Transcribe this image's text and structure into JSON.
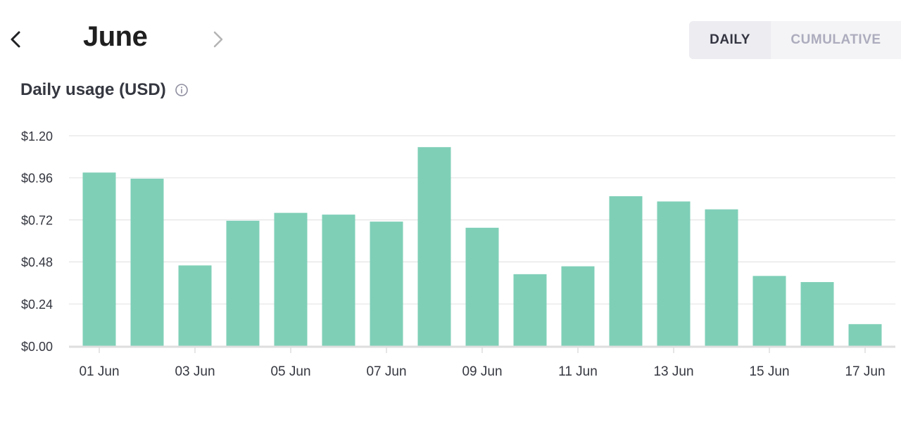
{
  "header": {
    "month": "June",
    "prev_icon": "chevron-left-icon",
    "next_icon": "chevron-right-icon",
    "toggle": {
      "daily_label": "DAILY",
      "cumulative_label": "CUMULATIVE",
      "selected": "DAILY"
    }
  },
  "usage": {
    "title": "Daily usage (USD)",
    "info_icon": "info-icon"
  },
  "colors": {
    "bar": "#7fcfb7",
    "grid": "#e5e5e5",
    "axis": "#dedede",
    "text": "#353740"
  },
  "chart_data": {
    "type": "bar",
    "title": "Daily usage (USD)",
    "xlabel": "",
    "ylabel": "",
    "ylim": [
      0,
      1.2
    ],
    "y_ticks": [
      "$0.00",
      "$0.24",
      "$0.48",
      "$0.72",
      "$0.96",
      "$1.20"
    ],
    "y_tick_values": [
      0,
      0.24,
      0.48,
      0.72,
      0.96,
      1.2
    ],
    "categories": [
      "01 Jun",
      "02 Jun",
      "03 Jun",
      "04 Jun",
      "05 Jun",
      "06 Jun",
      "07 Jun",
      "08 Jun",
      "09 Jun",
      "10 Jun",
      "11 Jun",
      "12 Jun",
      "13 Jun",
      "14 Jun",
      "15 Jun",
      "16 Jun",
      "17 Jun"
    ],
    "x_tick_labels": [
      "01 Jun",
      "",
      "03 Jun",
      "",
      "05 Jun",
      "",
      "07 Jun",
      "",
      "09 Jun",
      "",
      "11 Jun",
      "",
      "13 Jun",
      "",
      "15 Jun",
      "",
      "17 Jun"
    ],
    "values": [
      0.99,
      0.955,
      0.46,
      0.715,
      0.76,
      0.75,
      0.71,
      1.135,
      0.675,
      0.41,
      0.455,
      0.855,
      0.825,
      0.78,
      0.4,
      0.365,
      0.125
    ],
    "grid": true,
    "legend": "none"
  }
}
